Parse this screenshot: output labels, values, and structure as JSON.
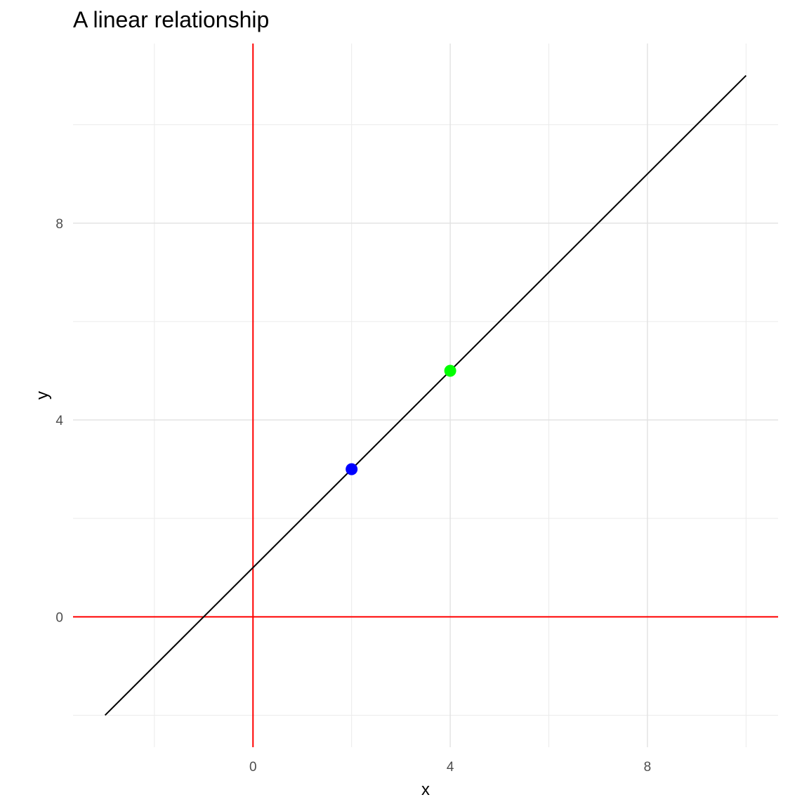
{
  "chart_data": {
    "type": "scatter",
    "title": "A linear relationship",
    "xlabel": "x",
    "ylabel": "y",
    "xlim": [
      -3.65,
      10.65
    ],
    "ylim": [
      -2.65,
      11.65
    ],
    "x_ticks": [
      0,
      4,
      8
    ],
    "y_ticks": [
      0,
      4,
      8
    ],
    "x_minor": [
      -2,
      2,
      6,
      10
    ],
    "y_minor": [
      -2,
      2,
      6,
      10
    ],
    "grid": true,
    "line": {
      "x": [
        -3,
        10
      ],
      "y": [
        -2,
        11
      ],
      "color": "#000000"
    },
    "reference_lines": [
      {
        "orientation": "vertical",
        "value": 0,
        "color": "#ff0000"
      },
      {
        "orientation": "horizontal",
        "value": 0,
        "color": "#ff0000"
      }
    ],
    "points": [
      {
        "x": 2,
        "y": 3,
        "color": "#0000ff"
      },
      {
        "x": 4,
        "y": 5,
        "color": "#00ff00"
      }
    ]
  }
}
